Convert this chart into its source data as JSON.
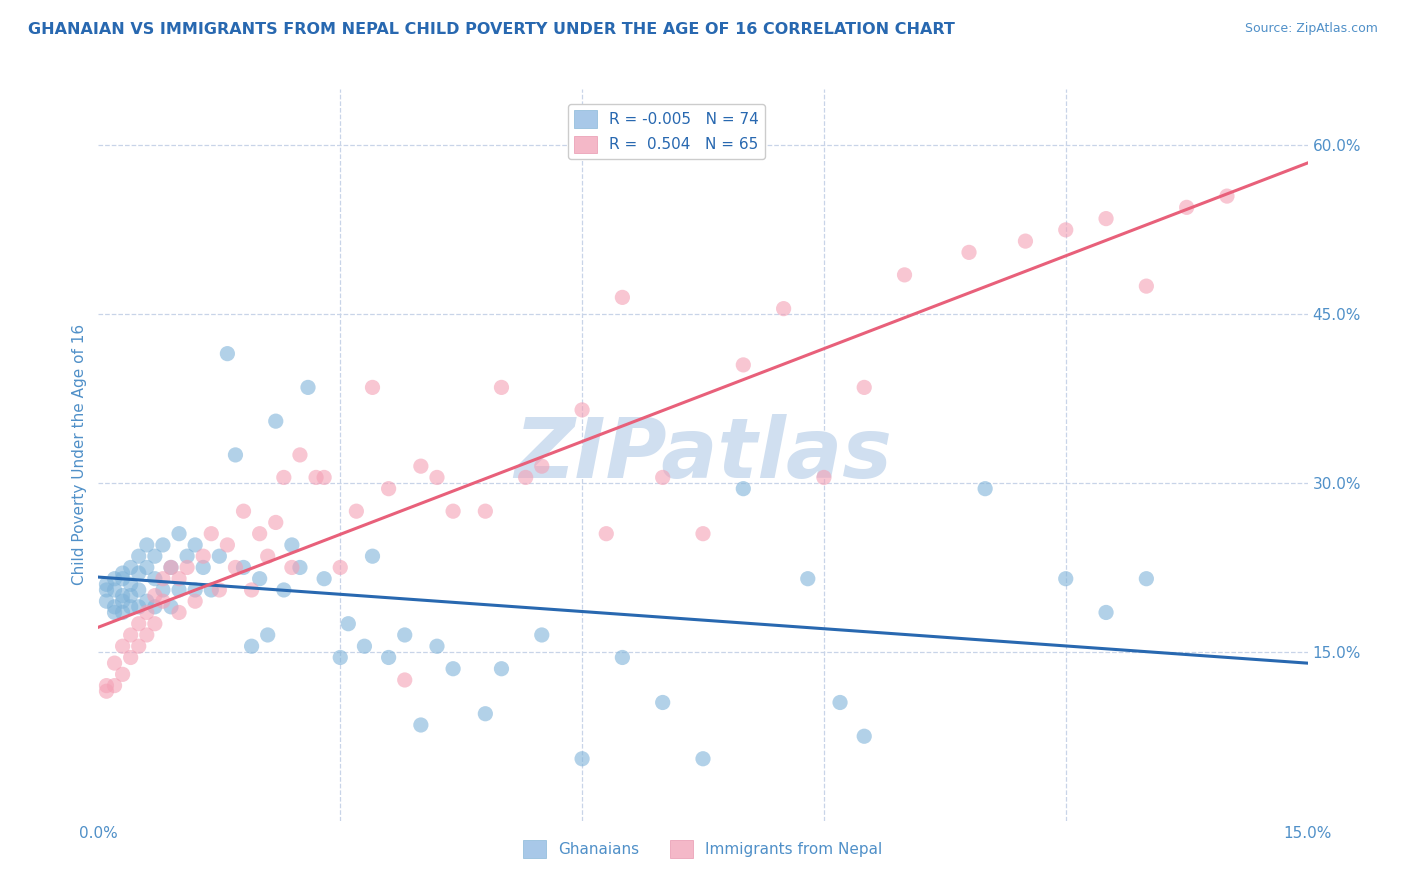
{
  "title": "GHANAIAN VS IMMIGRANTS FROM NEPAL CHILD POVERTY UNDER THE AGE OF 16 CORRELATION CHART",
  "source": "Source: ZipAtlas.com",
  "ylabel": "Child Poverty Under the Age of 16",
  "xlim": [
    0.0,
    0.15
  ],
  "ylim": [
    0.0,
    0.65
  ],
  "yticks_right": [
    0.15,
    0.3,
    0.45,
    0.6
  ],
  "ytick_right_labels": [
    "15.0%",
    "30.0%",
    "45.0%",
    "60.0%"
  ],
  "blue_color": "#7fb3d9",
  "pink_color": "#f4a0b5",
  "blue_line_color": "#2868b0",
  "pink_line_color": "#e8607a",
  "watermark_text": "ZIPatlas",
  "background_color": "#ffffff",
  "grid_color": "#c8d4e8",
  "title_color": "#2868b0",
  "axis_color": "#5090c8",
  "title_fontsize": 11.5,
  "watermark_color": "#d0dff0",
  "watermark_fontsize": 60,
  "legend_blue_color": "#a8c8e8",
  "legend_pink_color": "#f4b8c8",
  "blue_R": -0.005,
  "blue_N": 74,
  "pink_R": 0.504,
  "pink_N": 65,
  "blue_scatter_x": [
    0.001,
    0.001,
    0.001,
    0.002,
    0.002,
    0.002,
    0.002,
    0.003,
    0.003,
    0.003,
    0.003,
    0.003,
    0.004,
    0.004,
    0.004,
    0.004,
    0.005,
    0.005,
    0.005,
    0.005,
    0.006,
    0.006,
    0.006,
    0.007,
    0.007,
    0.007,
    0.008,
    0.008,
    0.009,
    0.009,
    0.01,
    0.01,
    0.011,
    0.012,
    0.012,
    0.013,
    0.014,
    0.015,
    0.016,
    0.017,
    0.018,
    0.019,
    0.02,
    0.021,
    0.022,
    0.023,
    0.024,
    0.025,
    0.026,
    0.028,
    0.03,
    0.031,
    0.033,
    0.034,
    0.036,
    0.038,
    0.04,
    0.042,
    0.044,
    0.048,
    0.05,
    0.055,
    0.06,
    0.065,
    0.07,
    0.075,
    0.08,
    0.088,
    0.092,
    0.095,
    0.11,
    0.12,
    0.125,
    0.13
  ],
  "blue_scatter_y": [
    0.21,
    0.205,
    0.195,
    0.215,
    0.205,
    0.19,
    0.185,
    0.22,
    0.215,
    0.2,
    0.195,
    0.185,
    0.225,
    0.21,
    0.2,
    0.19,
    0.235,
    0.22,
    0.205,
    0.19,
    0.245,
    0.225,
    0.195,
    0.235,
    0.215,
    0.19,
    0.245,
    0.205,
    0.225,
    0.19,
    0.255,
    0.205,
    0.235,
    0.245,
    0.205,
    0.225,
    0.205,
    0.235,
    0.415,
    0.325,
    0.225,
    0.155,
    0.215,
    0.165,
    0.355,
    0.205,
    0.245,
    0.225,
    0.385,
    0.215,
    0.145,
    0.175,
    0.155,
    0.235,
    0.145,
    0.165,
    0.085,
    0.155,
    0.135,
    0.095,
    0.135,
    0.165,
    0.055,
    0.145,
    0.105,
    0.055,
    0.295,
    0.215,
    0.105,
    0.075,
    0.295,
    0.215,
    0.185,
    0.215
  ],
  "pink_scatter_x": [
    0.001,
    0.001,
    0.002,
    0.002,
    0.003,
    0.003,
    0.004,
    0.004,
    0.005,
    0.005,
    0.006,
    0.006,
    0.007,
    0.007,
    0.008,
    0.008,
    0.009,
    0.01,
    0.01,
    0.011,
    0.012,
    0.013,
    0.014,
    0.015,
    0.016,
    0.017,
    0.018,
    0.019,
    0.02,
    0.021,
    0.022,
    0.023,
    0.024,
    0.025,
    0.027,
    0.028,
    0.03,
    0.032,
    0.034,
    0.036,
    0.038,
    0.04,
    0.042,
    0.044,
    0.048,
    0.05,
    0.053,
    0.055,
    0.06,
    0.063,
    0.065,
    0.07,
    0.075,
    0.08,
    0.085,
    0.09,
    0.095,
    0.1,
    0.108,
    0.115,
    0.12,
    0.125,
    0.13,
    0.135,
    0.14
  ],
  "pink_scatter_y": [
    0.12,
    0.115,
    0.14,
    0.12,
    0.155,
    0.13,
    0.165,
    0.145,
    0.175,
    0.155,
    0.185,
    0.165,
    0.2,
    0.175,
    0.215,
    0.195,
    0.225,
    0.215,
    0.185,
    0.225,
    0.195,
    0.235,
    0.255,
    0.205,
    0.245,
    0.225,
    0.275,
    0.205,
    0.255,
    0.235,
    0.265,
    0.305,
    0.225,
    0.325,
    0.305,
    0.305,
    0.225,
    0.275,
    0.385,
    0.295,
    0.125,
    0.315,
    0.305,
    0.275,
    0.275,
    0.385,
    0.305,
    0.315,
    0.365,
    0.255,
    0.465,
    0.305,
    0.255,
    0.405,
    0.455,
    0.305,
    0.385,
    0.485,
    0.505,
    0.515,
    0.525,
    0.535,
    0.475,
    0.545,
    0.555
  ]
}
